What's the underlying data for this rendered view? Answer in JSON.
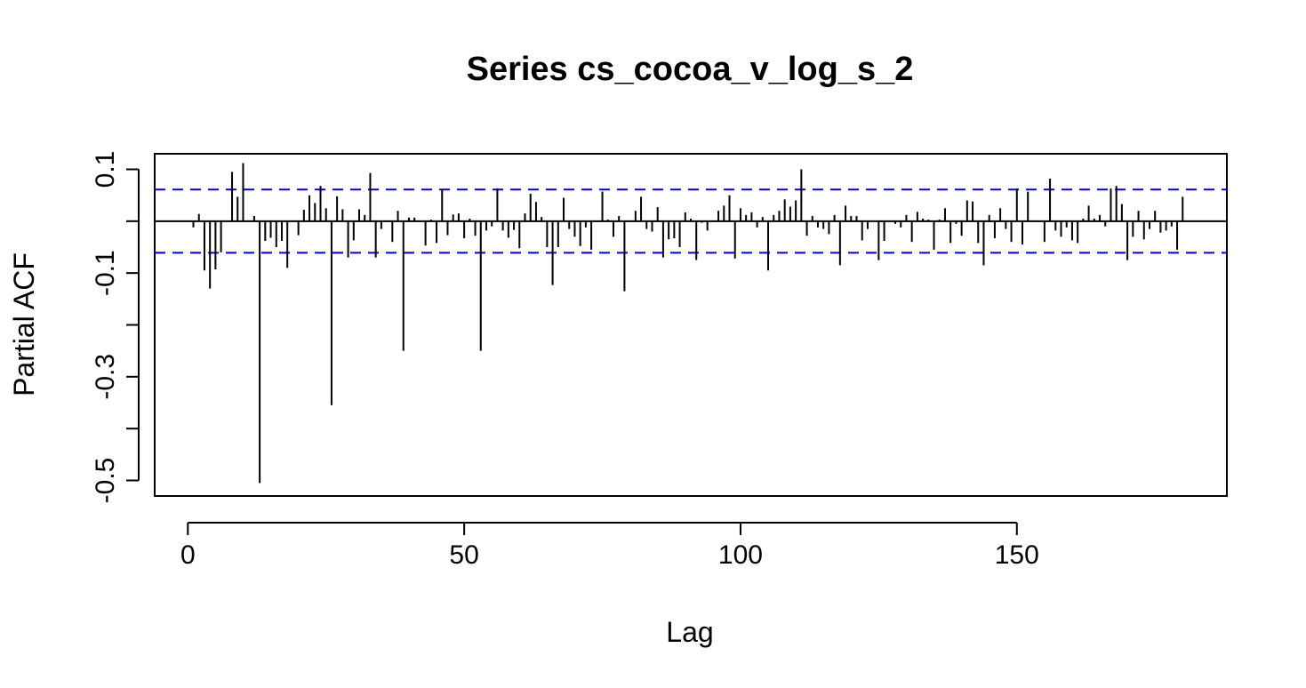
{
  "chart_data": {
    "type": "bar",
    "title": "Series  cs_cocoa_v_log_s_2",
    "xlabel": "Lag",
    "ylabel": "Partial ACF",
    "xlim": [
      -6,
      188
    ],
    "ylim": [
      -0.53,
      0.13
    ],
    "x_ticks": [
      0,
      50,
      100,
      150
    ],
    "x_tick_labels": [
      "0",
      "50",
      "100",
      "150"
    ],
    "y_ticks": [
      0.1,
      -0.1,
      -0.3,
      -0.5
    ],
    "y_tick_labels": [
      "0.1",
      "-0.1",
      "-0.3",
      "-0.5"
    ],
    "confidence_bound": 0.061,
    "colors": {
      "bars": "#000000",
      "confidence": "#0000cc",
      "zero_line": "#000000"
    },
    "grid": false,
    "lags": [
      1,
      2,
      3,
      4,
      5,
      6,
      7,
      8,
      9,
      10,
      11,
      12,
      13,
      14,
      15,
      16,
      17,
      18,
      19,
      20,
      21,
      22,
      23,
      24,
      25,
      26,
      27,
      28,
      29,
      30,
      31,
      32,
      33,
      34,
      35,
      36,
      37,
      38,
      39,
      40,
      41,
      42,
      43,
      44,
      45,
      46,
      47,
      48,
      49,
      50,
      51,
      52,
      53,
      54,
      55,
      56,
      57,
      58,
      59,
      60,
      61,
      62,
      63,
      64,
      65,
      66,
      67,
      68,
      69,
      70,
      71,
      72,
      73,
      74,
      75,
      76,
      77,
      78,
      79,
      80,
      81,
      82,
      83,
      84,
      85,
      86,
      87,
      88,
      89,
      90,
      91,
      92,
      93,
      94,
      95,
      96,
      97,
      98,
      99,
      100,
      101,
      102,
      103,
      104,
      105,
      106,
      107,
      108,
      109,
      110,
      111,
      112,
      113,
      114,
      115,
      116,
      117,
      118,
      119,
      120,
      121,
      122,
      123,
      124,
      125,
      126,
      127,
      128,
      129,
      130,
      131,
      132,
      133,
      134,
      135,
      136,
      137,
      138,
      139,
      140,
      141,
      142,
      143,
      144,
      145,
      146,
      147,
      148,
      149,
      150,
      151,
      152,
      153,
      154,
      155,
      156,
      157,
      158,
      159,
      160,
      161,
      162,
      163,
      164,
      165,
      166,
      167,
      168,
      169,
      170,
      171,
      172,
      173,
      174,
      175,
      176,
      177,
      178,
      179,
      180
    ],
    "values": [
      -0.012,
      0.014,
      -0.095,
      -0.13,
      -0.093,
      -0.06,
      0.0,
      0.095,
      0.047,
      0.112,
      0.0,
      0.01,
      -0.505,
      -0.038,
      -0.032,
      -0.05,
      -0.038,
      -0.09,
      0.0,
      -0.027,
      0.022,
      0.05,
      0.035,
      0.068,
      0.025,
      -0.355,
      0.048,
      0.023,
      -0.07,
      -0.037,
      0.023,
      0.012,
      0.093,
      -0.07,
      -0.015,
      0.0,
      -0.04,
      0.02,
      -0.25,
      0.007,
      0.007,
      0.0,
      -0.047,
      0.003,
      -0.042,
      0.062,
      -0.027,
      0.013,
      0.015,
      -0.033,
      0.005,
      -0.028,
      -0.25,
      -0.018,
      -0.01,
      0.063,
      -0.018,
      -0.032,
      -0.017,
      -0.052,
      0.015,
      0.053,
      0.037,
      0.008,
      -0.05,
      -0.123,
      -0.05,
      0.045,
      -0.015,
      -0.03,
      -0.048,
      -0.012,
      -0.055,
      0.0,
      0.057,
      0.003,
      -0.03,
      0.01,
      -0.135,
      0.0,
      0.02,
      0.047,
      -0.015,
      -0.02,
      0.027,
      -0.07,
      -0.035,
      -0.033,
      -0.05,
      0.017,
      0.005,
      -0.075,
      -0.003,
      -0.018,
      0.0,
      0.02,
      0.03,
      0.05,
      -0.072,
      0.025,
      0.012,
      0.017,
      -0.012,
      0.008,
      -0.095,
      0.012,
      0.02,
      0.042,
      0.028,
      0.04,
      0.1,
      -0.028,
      0.01,
      -0.012,
      -0.015,
      -0.025,
      0.012,
      -0.085,
      0.03,
      0.01,
      0.01,
      -0.037,
      -0.015,
      0.0,
      -0.075,
      -0.038,
      0.0,
      -0.005,
      -0.012,
      0.012,
      -0.04,
      0.018,
      0.005,
      0.003,
      -0.055,
      0.003,
      0.025,
      -0.042,
      -0.005,
      -0.028,
      0.04,
      0.038,
      -0.042,
      -0.085,
      0.012,
      -0.033,
      0.025,
      -0.015,
      -0.04,
      0.063,
      -0.045,
      0.057,
      0.0,
      0.0,
      -0.04,
      0.082,
      -0.018,
      -0.03,
      -0.012,
      -0.037,
      -0.042,
      0.005,
      0.03,
      0.005,
      0.012,
      -0.01,
      0.063,
      0.068,
      0.033,
      -0.075,
      -0.03,
      0.02,
      -0.035,
      -0.015,
      0.02,
      -0.022,
      -0.018,
      -0.01,
      -0.055,
      0.047
    ]
  }
}
